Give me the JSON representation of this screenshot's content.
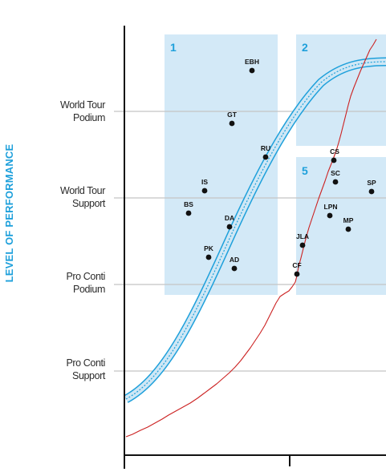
{
  "y_axis_title": "LEVEL OF PERFORMANCE",
  "levels": [
    {
      "line1": "World Tour",
      "line2": "Podium"
    },
    {
      "line1": "World Tour",
      "line2": "Support"
    },
    {
      "line1": "Pro Conti",
      "line2": "Podium"
    },
    {
      "line1": "Pro Conti",
      "line2": "Support"
    }
  ],
  "zones": [
    {
      "label": "1"
    },
    {
      "label": "2"
    },
    {
      "label": "5"
    }
  ],
  "riders": [
    {
      "code": "EBH"
    },
    {
      "code": "GT"
    },
    {
      "code": "RU"
    },
    {
      "code": "IS"
    },
    {
      "code": "BS"
    },
    {
      "code": "DA"
    },
    {
      "code": "PK"
    },
    {
      "code": "AD"
    },
    {
      "code": "CS"
    },
    {
      "code": "SC"
    },
    {
      "code": "SP"
    },
    {
      "code": "LPN"
    },
    {
      "code": "MP"
    },
    {
      "code": "JLA"
    },
    {
      "code": "CF"
    }
  ],
  "colors": {
    "accent": "#1ea0db",
    "zone_fill": "#d3e9f7",
    "red_curve": "#cc2222",
    "level_line": "#c4c4c4",
    "axis": "#111111"
  }
}
